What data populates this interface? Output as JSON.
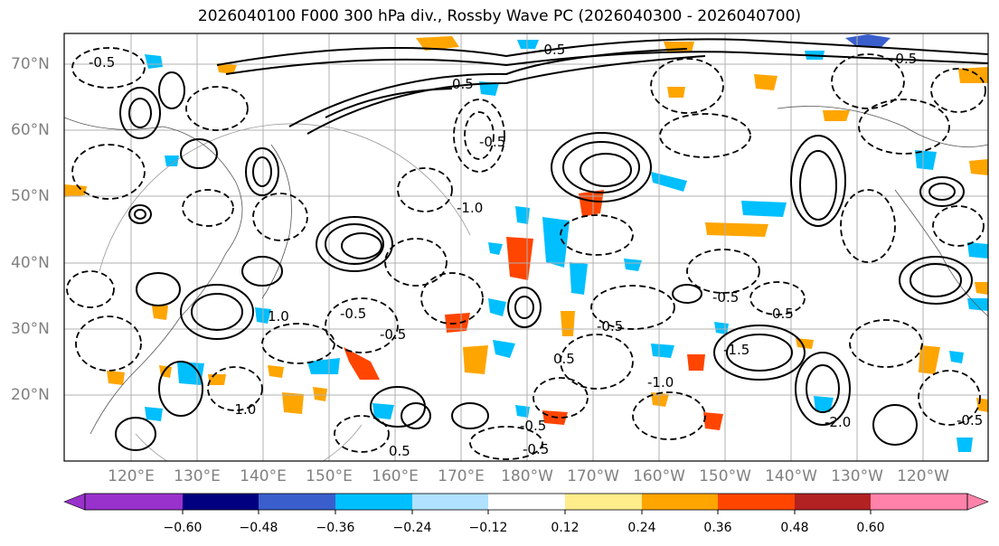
{
  "title": "2026040100 F000 300 hPa div., Rossby Wave PC (2026040300 - 2026040700)",
  "map": {
    "lat_labels": [
      "70°N",
      "60°N",
      "50°N",
      "40°N",
      "30°N",
      "20°N"
    ],
    "lon_labels": [
      "120°E",
      "130°E",
      "140°E",
      "150°E",
      "160°E",
      "170°E",
      "180°W",
      "170°W",
      "160°W",
      "150°W",
      "140°W",
      "130°W",
      "120°W"
    ],
    "contour_labels": [
      "-0.5",
      "-0.5",
      "-0.5",
      "0.5",
      "-0.5",
      "1.0",
      "-0.5",
      "-0.5",
      "-1.0",
      "0.5",
      "-0.5",
      "-1.0",
      "0.5",
      "-0.5",
      "-0.5",
      "-0.5",
      "0.5",
      "-1.0",
      "-1.5",
      "-2.0",
      "-0.5"
    ]
  },
  "colorbar": {
    "ticks": [
      "−0.60",
      "−0.48",
      "−0.36",
      "−0.24",
      "−0.12",
      "0.12",
      "0.24",
      "0.36",
      "0.48",
      "0.60"
    ],
    "colors": [
      "#9932cc",
      "#000080",
      "#3a5fcd",
      "#00bfff",
      "#b0e2ff",
      "#ffffff",
      "#ffec8b",
      "#ffa500",
      "#ff4500",
      "#b22222",
      "#ff82ab"
    ]
  }
}
